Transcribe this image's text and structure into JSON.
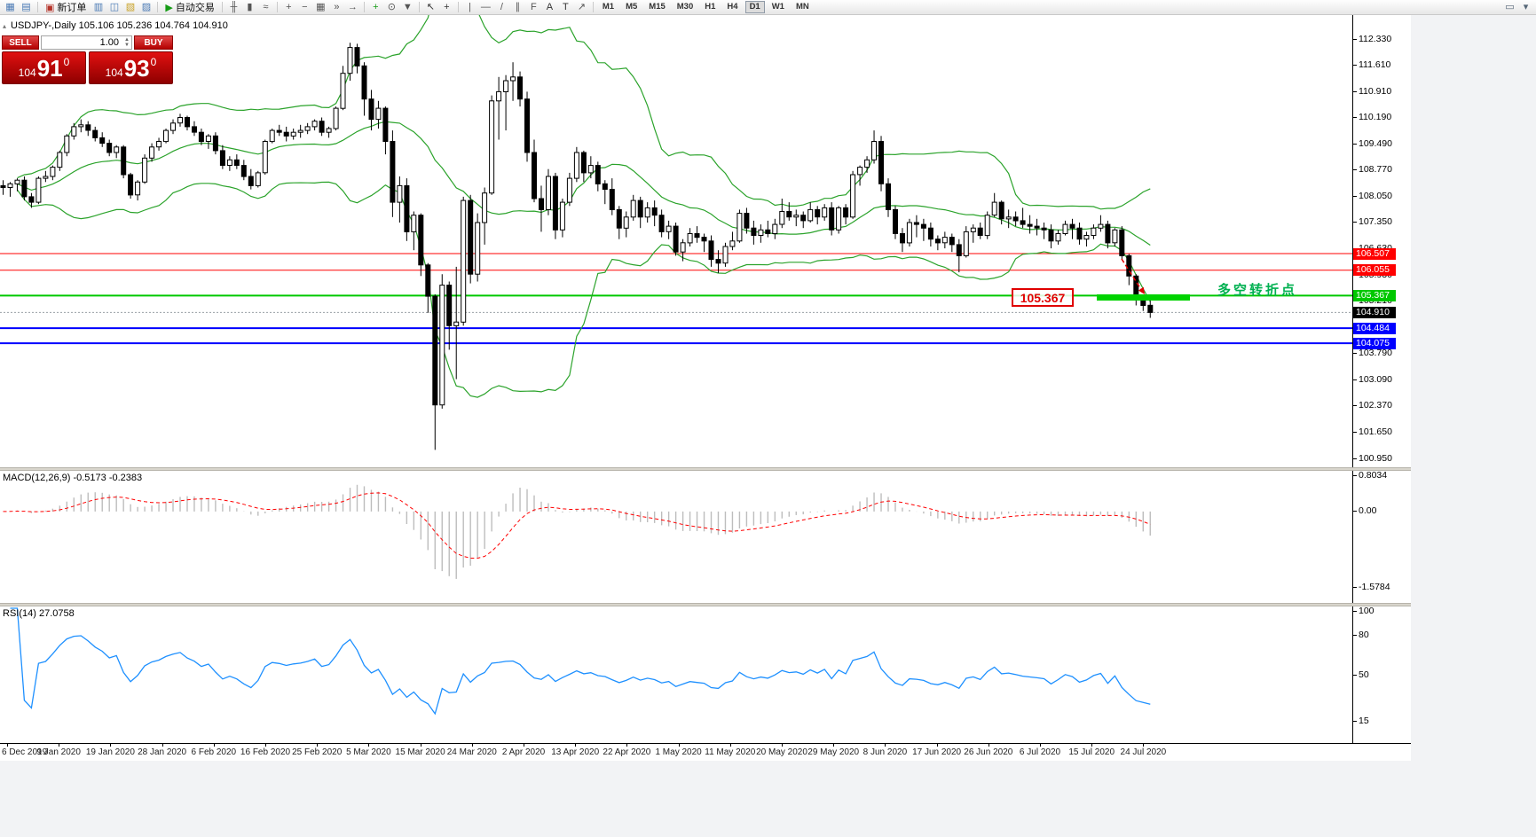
{
  "app": {
    "toolbar": {
      "items": [
        {
          "name": "new-chart",
          "glyph": "▦",
          "color": "#4a7ab5"
        },
        {
          "name": "profiles",
          "glyph": "▤",
          "color": "#4a7ab5"
        },
        {
          "name": "sep"
        },
        {
          "name": "new-order",
          "glyph": "▣",
          "label": "新订单",
          "color": "#b5342a"
        },
        {
          "name": "market-watch",
          "glyph": "▥",
          "color": "#4a7ab5"
        },
        {
          "name": "data-window",
          "glyph": "◫",
          "color": "#4a7ab5"
        },
        {
          "name": "navigator",
          "glyph": "▧",
          "color": "#c9a227"
        },
        {
          "name": "terminal",
          "glyph": "▨",
          "color": "#4a7ab5"
        },
        {
          "name": "sep"
        },
        {
          "name": "autotrading",
          "glyph": "▶",
          "label": "自动交易",
          "color": "#169c16"
        },
        {
          "name": "sep"
        },
        {
          "name": "bar-chart",
          "glyph": "╫",
          "color": "#555555"
        },
        {
          "name": "candlestick-chart",
          "glyph": "▮",
          "color": "#555555"
        },
        {
          "name": "line-chart",
          "glyph": "≈",
          "color": "#555555"
        },
        {
          "name": "sep"
        },
        {
          "name": "zoom-in",
          "glyph": "+",
          "color": "#555555"
        },
        {
          "name": "zoom-out",
          "glyph": "−",
          "color": "#555555"
        },
        {
          "name": "tile-windows",
          "glyph": "▦",
          "color": "#555555"
        },
        {
          "name": "auto-scroll",
          "glyph": "»",
          "color": "#555555"
        },
        {
          "name": "chart-shift",
          "glyph": "→",
          "color": "#555555"
        },
        {
          "name": "sep"
        },
        {
          "name": "indicators",
          "glyph": "+",
          "color": "#169c16"
        },
        {
          "name": "periods",
          "glyph": "⊙",
          "color": "#555555"
        },
        {
          "name": "templates",
          "glyph": "▼",
          "color": "#555555"
        },
        {
          "name": "sep"
        },
        {
          "name": "cursor",
          "glyph": "↖",
          "color": "#333333"
        },
        {
          "name": "crosshair",
          "glyph": "+",
          "color": "#333333"
        },
        {
          "name": "sep"
        },
        {
          "name": "vertical-line",
          "glyph": "|",
          "color": "#555555"
        },
        {
          "name": "horizontal-line",
          "glyph": "—",
          "color": "#555555"
        },
        {
          "name": "trendline",
          "glyph": "/",
          "color": "#555555"
        },
        {
          "name": "equidistant-channel",
          "glyph": "∥",
          "color": "#555555"
        },
        {
          "name": "fibonacci",
          "glyph": "F",
          "color": "#555555"
        },
        {
          "name": "text",
          "glyph": "A",
          "color": "#333333"
        },
        {
          "name": "text-label",
          "glyph": "T",
          "color": "#333333"
        },
        {
          "name": "arrows",
          "glyph": "↗",
          "color": "#555555"
        },
        {
          "name": "sep"
        }
      ],
      "timeframes": {
        "options": [
          "M1",
          "M5",
          "M15",
          "M30",
          "H1",
          "H4",
          "D1",
          "W1",
          "MN"
        ],
        "active": "D1"
      },
      "right_icons": [
        {
          "name": "chart-window-menu",
          "glyph": "▭"
        },
        {
          "name": "toolbar-options",
          "glyph": "▾"
        }
      ]
    }
  },
  "chart": {
    "title_text": "USDJPY-,Daily  105.106 105.236 104.764 104.910",
    "collapse_glyph": "▴",
    "trade_panel": {
      "sell_label": "SELL",
      "buy_label": "BUY",
      "volume": "1.00",
      "spinner_up": "▲",
      "spinner_down": "▼",
      "bid": {
        "small": "104",
        "big": "91",
        "sup": "0"
      },
      "ask": {
        "small": "104",
        "big": "93",
        "sup": "0"
      }
    },
    "annotations": {
      "price_label": "105.367",
      "turning_point": "多空转折点"
    },
    "price_axis_labels": [
      "112.330",
      "111.610",
      "110.910",
      "110.190",
      "109.490",
      "108.770",
      "108.050",
      "107.350",
      "106.630",
      "105.930",
      "105.210",
      "104.510",
      "103.790",
      "103.090",
      "102.370",
      "101.650",
      "100.950"
    ],
    "current_price_tag": "104.910",
    "date_labels": [
      "6 Dec 2019",
      "9 Jan 2020",
      "19 Jan 2020",
      "28 Jan 2020",
      "6 Feb 2020",
      "16 Feb 2020",
      "25 Feb 2020",
      "5 Mar 2020",
      "15 Mar 2020",
      "24 Mar 2020",
      "2 Apr 2020",
      "13 Apr 2020",
      "22 Apr 2020",
      "1 May 2020",
      "11 May 2020",
      "20 May 2020",
      "29 May 2020",
      "8 Jun 2020",
      "17 Jun 2020",
      "26 Jun 2020",
      "6 Jul 2020",
      "15 Jul 2020",
      "24 Jul 2020"
    ]
  },
  "indicators": {
    "macd": {
      "label": "MACD(12,26,9) -0.5173 -0.2383",
      "axis_labels": [
        "0.8034",
        "0.00",
        "-1.5784"
      ]
    },
    "rsi": {
      "label": "RSI(14) 27.0758",
      "axis_labels": [
        "100",
        "80",
        "50",
        "15"
      ]
    }
  },
  "chart_data": {
    "type": "candlestick",
    "symbol": "USDJPY",
    "timeframe": "D1",
    "y_axis_range": [
      100.95,
      112.33
    ],
    "macd_axis_range": [
      -1.5784,
      0.8034
    ],
    "rsi_axis_range": [
      0,
      100
    ],
    "bid": 104.91,
    "ask": 104.93,
    "indicators": {
      "bollinger": {
        "period": 20,
        "deviation": 2
      },
      "macd": {
        "fast": 12,
        "slow": 26,
        "signal": 9
      },
      "rsi": {
        "period": 14
      }
    },
    "hlines": [
      {
        "price": 106.507,
        "label": "106.507",
        "color": "#FF0000",
        "width": 1
      },
      {
        "price": 106.055,
        "label": "106.055",
        "color": "#FF0000",
        "width": 1
      },
      {
        "price": 105.367,
        "label": "105.367",
        "color": "#00C800",
        "width": 2
      },
      {
        "price": 104.484,
        "label": "104.484",
        "color": "#0000FF",
        "width": 2
      },
      {
        "price": 104.075,
        "label": "104.075",
        "color": "#0000FF",
        "width": 2
      }
    ],
    "ohlc": [
      [
        108.35,
        108.5,
        108.1,
        108.3
      ],
      [
        108.3,
        108.45,
        108.05,
        108.4
      ],
      [
        108.4,
        108.55,
        108.2,
        108.5
      ],
      [
        108.5,
        108.6,
        107.95,
        108.05
      ],
      [
        108.05,
        108.15,
        107.75,
        107.9
      ],
      [
        107.9,
        108.6,
        107.85,
        108.55
      ],
      [
        108.55,
        108.75,
        108.45,
        108.6
      ],
      [
        108.6,
        108.9,
        108.5,
        108.85
      ],
      [
        108.85,
        109.3,
        108.75,
        109.25
      ],
      [
        109.25,
        109.75,
        109.15,
        109.7
      ],
      [
        109.7,
        110.05,
        109.6,
        109.95
      ],
      [
        109.95,
        110.15,
        109.8,
        110.0
      ],
      [
        110.0,
        110.1,
        109.7,
        109.85
      ],
      [
        109.85,
        109.95,
        109.55,
        109.65
      ],
      [
        109.65,
        109.8,
        109.4,
        109.5
      ],
      [
        109.5,
        109.6,
        109.15,
        109.25
      ],
      [
        109.25,
        109.45,
        109.1,
        109.4
      ],
      [
        109.4,
        109.45,
        108.55,
        108.65
      ],
      [
        108.65,
        108.7,
        108.0,
        108.1
      ],
      [
        108.1,
        108.5,
        107.95,
        108.45
      ],
      [
        108.45,
        109.2,
        108.4,
        109.1
      ],
      [
        109.1,
        109.5,
        109.0,
        109.4
      ],
      [
        109.4,
        109.65,
        109.3,
        109.55
      ],
      [
        109.55,
        109.9,
        109.5,
        109.85
      ],
      [
        109.85,
        110.15,
        109.75,
        110.05
      ],
      [
        110.05,
        110.3,
        109.95,
        110.2
      ],
      [
        110.2,
        110.25,
        109.85,
        109.95
      ],
      [
        109.95,
        110.1,
        109.7,
        109.8
      ],
      [
        109.8,
        109.9,
        109.45,
        109.55
      ],
      [
        109.55,
        109.75,
        109.35,
        109.7
      ],
      [
        109.7,
        109.8,
        109.2,
        109.3
      ],
      [
        109.3,
        109.45,
        108.8,
        108.9
      ],
      [
        108.9,
        109.15,
        108.75,
        109.05
      ],
      [
        109.05,
        109.2,
        108.8,
        108.9
      ],
      [
        108.9,
        109.05,
        108.5,
        108.6
      ],
      [
        108.6,
        108.8,
        108.25,
        108.35
      ],
      [
        108.35,
        108.75,
        108.3,
        108.7
      ],
      [
        108.7,
        109.6,
        108.65,
        109.55
      ],
      [
        109.55,
        109.9,
        109.5,
        109.85
      ],
      [
        109.85,
        110.0,
        109.7,
        109.8
      ],
      [
        109.8,
        109.95,
        109.55,
        109.7
      ],
      [
        109.7,
        109.9,
        109.6,
        109.8
      ],
      [
        109.8,
        110.0,
        109.65,
        109.85
      ],
      [
        109.85,
        110.05,
        109.75,
        109.95
      ],
      [
        109.95,
        110.15,
        109.85,
        110.1
      ],
      [
        110.1,
        110.2,
        109.7,
        109.8
      ],
      [
        109.8,
        109.95,
        109.65,
        109.9
      ],
      [
        109.9,
        110.5,
        109.85,
        110.45
      ],
      [
        110.45,
        111.6,
        110.4,
        111.4
      ],
      [
        111.4,
        112.23,
        111.2,
        112.1
      ],
      [
        112.1,
        112.2,
        111.4,
        111.6
      ],
      [
        111.6,
        111.7,
        110.25,
        110.7
      ],
      [
        110.7,
        110.95,
        109.85,
        110.15
      ],
      [
        110.15,
        110.65,
        109.9,
        110.45
      ],
      [
        110.45,
        110.5,
        109.2,
        109.55
      ],
      [
        109.55,
        109.85,
        107.5,
        107.9
      ],
      [
        107.9,
        108.6,
        107.35,
        108.35
      ],
      [
        108.35,
        108.55,
        106.85,
        107.1
      ],
      [
        107.1,
        107.65,
        106.6,
        107.55
      ],
      [
        107.55,
        107.6,
        105.9,
        106.2
      ],
      [
        106.2,
        106.25,
        104.9,
        105.35
      ],
      [
        105.35,
        105.4,
        101.18,
        102.4
      ],
      [
        102.4,
        105.95,
        102.3,
        105.65
      ],
      [
        105.65,
        105.75,
        103.9,
        104.55
      ],
      [
        104.55,
        106.15,
        103.1,
        104.65
      ],
      [
        104.65,
        108.05,
        104.55,
        107.95
      ],
      [
        107.95,
        108.1,
        105.7,
        105.95
      ],
      [
        105.95,
        107.6,
        105.75,
        107.35
      ],
      [
        107.35,
        108.3,
        106.75,
        108.15
      ],
      [
        108.15,
        110.8,
        108.1,
        110.65
      ],
      [
        110.65,
        111.3,
        109.6,
        110.9
      ],
      [
        110.9,
        111.35,
        109.85,
        111.2
      ],
      [
        111.2,
        111.7,
        110.65,
        111.3
      ],
      [
        111.3,
        111.45,
        110.5,
        110.7
      ],
      [
        110.7,
        110.9,
        109.0,
        109.25
      ],
      [
        109.25,
        109.6,
        107.9,
        108.0
      ],
      [
        108.0,
        108.35,
        107.1,
        107.7
      ],
      [
        107.7,
        108.8,
        107.55,
        108.6
      ],
      [
        108.6,
        108.7,
        106.9,
        107.15
      ],
      [
        107.15,
        108.0,
        106.95,
        107.9
      ],
      [
        107.9,
        108.7,
        107.8,
        108.55
      ],
      [
        108.55,
        109.4,
        108.45,
        109.25
      ],
      [
        109.25,
        109.3,
        108.45,
        108.7
      ],
      [
        108.7,
        109.15,
        108.55,
        108.9
      ],
      [
        108.9,
        109.0,
        108.2,
        108.4
      ],
      [
        108.4,
        108.5,
        107.85,
        108.25
      ],
      [
        108.25,
        108.55,
        107.55,
        107.7
      ],
      [
        107.7,
        107.8,
        106.9,
        107.2
      ],
      [
        107.2,
        107.65,
        106.95,
        107.5
      ],
      [
        107.5,
        108.1,
        107.4,
        107.95
      ],
      [
        107.95,
        108.05,
        107.2,
        107.5
      ],
      [
        107.5,
        107.9,
        107.35,
        107.75
      ],
      [
        107.75,
        107.95,
        107.25,
        107.55
      ],
      [
        107.55,
        107.7,
        106.95,
        107.1
      ],
      [
        107.1,
        107.4,
        106.9,
        107.25
      ],
      [
        107.25,
        107.35,
        106.45,
        106.55
      ],
      [
        106.55,
        106.9,
        106.3,
        106.8
      ],
      [
        106.8,
        107.2,
        106.7,
        107.05
      ],
      [
        107.05,
        107.25,
        106.8,
        106.95
      ],
      [
        106.95,
        107.05,
        106.55,
        106.85
      ],
      [
        106.85,
        107.0,
        106.15,
        106.35
      ],
      [
        106.35,
        106.6,
        105.98,
        106.25
      ],
      [
        106.25,
        106.8,
        106.15,
        106.7
      ],
      [
        106.7,
        107.1,
        106.6,
        106.85
      ],
      [
        106.85,
        107.7,
        106.8,
        107.6
      ],
      [
        107.6,
        107.75,
        107.05,
        107.2
      ],
      [
        107.2,
        107.4,
        106.75,
        107.0
      ],
      [
        107.0,
        107.3,
        106.8,
        107.15
      ],
      [
        107.15,
        107.4,
        106.95,
        107.05
      ],
      [
        107.05,
        107.45,
        106.9,
        107.3
      ],
      [
        107.3,
        108.0,
        107.2,
        107.65
      ],
      [
        107.65,
        107.9,
        107.4,
        107.5
      ],
      [
        107.5,
        107.7,
        107.25,
        107.55
      ],
      [
        107.55,
        107.65,
        107.2,
        107.4
      ],
      [
        107.4,
        107.9,
        107.35,
        107.7
      ],
      [
        107.7,
        107.8,
        107.3,
        107.5
      ],
      [
        107.5,
        107.85,
        107.4,
        107.75
      ],
      [
        107.75,
        107.9,
        107.0,
        107.15
      ],
      [
        107.15,
        107.8,
        107.05,
        107.75
      ],
      [
        107.75,
        107.85,
        107.3,
        107.5
      ],
      [
        107.5,
        108.75,
        107.45,
        108.65
      ],
      [
        108.65,
        108.9,
        108.35,
        108.85
      ],
      [
        108.85,
        109.15,
        108.7,
        109.05
      ],
      [
        109.05,
        109.85,
        108.95,
        109.55
      ],
      [
        109.55,
        109.7,
        108.2,
        108.4
      ],
      [
        108.4,
        108.55,
        107.5,
        107.7
      ],
      [
        107.7,
        107.8,
        106.9,
        107.05
      ],
      [
        107.05,
        107.2,
        106.55,
        106.8
      ],
      [
        106.8,
        107.45,
        106.7,
        107.35
      ],
      [
        107.35,
        107.55,
        106.95,
        107.3
      ],
      [
        107.3,
        107.45,
        106.85,
        107.2
      ],
      [
        107.2,
        107.35,
        106.7,
        106.9
      ],
      [
        106.9,
        107.0,
        106.6,
        106.8
      ],
      [
        106.8,
        107.1,
        106.65,
        106.95
      ],
      [
        106.95,
        107.05,
        106.55,
        106.75
      ],
      [
        106.75,
        106.9,
        106.0,
        106.45
      ],
      [
        106.45,
        107.25,
        106.4,
        107.1
      ],
      [
        107.1,
        107.3,
        106.8,
        107.2
      ],
      [
        107.2,
        107.35,
        106.9,
        107.0
      ],
      [
        107.0,
        107.65,
        106.9,
        107.55
      ],
      [
        107.55,
        108.15,
        107.5,
        107.9
      ],
      [
        107.9,
        107.95,
        107.3,
        107.45
      ],
      [
        107.45,
        107.7,
        107.2,
        107.5
      ],
      [
        107.5,
        107.65,
        107.25,
        107.4
      ],
      [
        107.4,
        107.75,
        107.2,
        107.3
      ],
      [
        107.3,
        107.55,
        107.05,
        107.25
      ],
      [
        107.25,
        107.45,
        107.0,
        107.2
      ],
      [
        107.2,
        107.35,
        106.9,
        107.15
      ],
      [
        107.15,
        107.3,
        106.65,
        106.85
      ],
      [
        106.85,
        107.15,
        106.75,
        107.05
      ],
      [
        107.05,
        107.4,
        107.0,
        107.3
      ],
      [
        107.3,
        107.45,
        106.9,
        107.2
      ],
      [
        107.2,
        107.35,
        106.75,
        106.9
      ],
      [
        106.9,
        107.1,
        106.7,
        107.0
      ],
      [
        107.0,
        107.3,
        106.9,
        107.2
      ],
      [
        107.2,
        107.55,
        107.1,
        107.3
      ],
      [
        107.3,
        107.4,
        106.65,
        106.8
      ],
      [
        106.8,
        107.2,
        106.7,
        107.15
      ],
      [
        107.15,
        107.25,
        106.35,
        106.45
      ],
      [
        106.45,
        106.5,
        105.65,
        105.9
      ],
      [
        105.9,
        105.95,
        105.1,
        105.3
      ],
      [
        105.3,
        105.4,
        104.95,
        105.1
      ],
      [
        105.106,
        105.236,
        104.764,
        104.91
      ]
    ]
  },
  "colors": {
    "candle_up": "#FFFFFF",
    "candle_down": "#000000",
    "candle_outline": "#000000",
    "bollinger": "#2BA32B",
    "macd_histogram": "#BDBDBD",
    "macd_signal": "#FF0000",
    "rsi_line": "#1E90FF",
    "trade_red": "#C40000",
    "tag_black": "#000000"
  }
}
